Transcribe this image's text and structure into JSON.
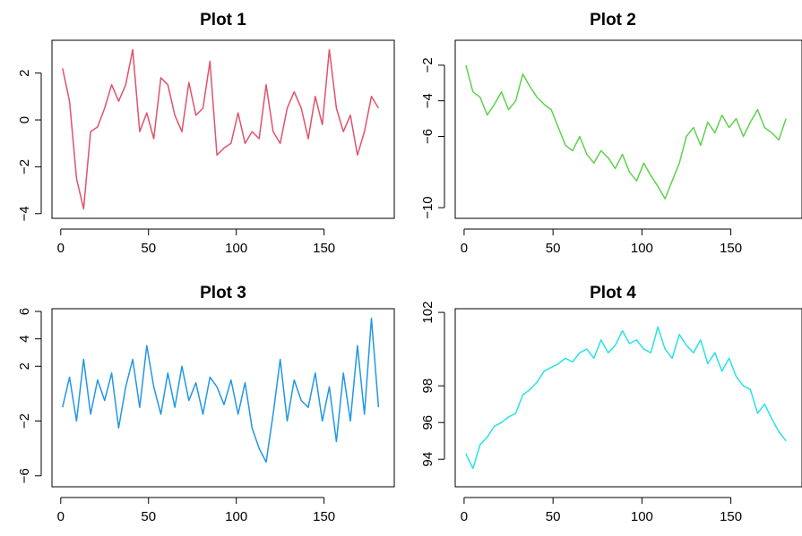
{
  "chart_data": [
    {
      "type": "line",
      "title": "Plot 1",
      "color": "#DF536B",
      "xlim": [
        -5,
        190
      ],
      "ylim": [
        -4.2,
        3.4
      ],
      "xticks": [
        0,
        50,
        100,
        150
      ],
      "xtick_labels": [
        "0",
        "50",
        "100",
        "150"
      ],
      "yticks": [
        -4,
        -2,
        0,
        2
      ],
      "ytick_labels": [
        "−4",
        "−2",
        "0",
        "2"
      ],
      "x": [
        1,
        5,
        9,
        13,
        17,
        21,
        25,
        29,
        33,
        37,
        41,
        45,
        49,
        53,
        57,
        61,
        65,
        69,
        73,
        77,
        81,
        85,
        89,
        93,
        97,
        101,
        105,
        109,
        113,
        117,
        121,
        125,
        129,
        133,
        137,
        141,
        145,
        149,
        153,
        157,
        161,
        165,
        169,
        173,
        177,
        181
      ],
      "y": [
        2.2,
        0.8,
        -2.5,
        -3.8,
        -0.5,
        -0.3,
        0.5,
        1.5,
        0.8,
        1.5,
        3.0,
        -0.5,
        0.3,
        -0.8,
        1.8,
        1.5,
        0.2,
        -0.5,
        1.6,
        0.2,
        0.5,
        2.5,
        -1.5,
        -1.2,
        -1.0,
        0.3,
        -1.0,
        -0.5,
        -0.8,
        1.5,
        -0.5,
        -1.0,
        0.5,
        1.2,
        0.5,
        -0.8,
        1.0,
        -0.2,
        3.0,
        0.5,
        -0.5,
        0.2,
        -1.5,
        -0.5,
        1.0,
        0.5
      ]
    },
    {
      "type": "line",
      "title": "Plot 2",
      "color": "#61D04F",
      "xlim": [
        -5,
        190
      ],
      "ylim": [
        -10.6,
        -0.6
      ],
      "xticks": [
        0,
        50,
        100,
        150
      ],
      "xtick_labels": [
        "0",
        "50",
        "100",
        "150"
      ],
      "yticks": [
        -10,
        -6,
        -4,
        -2
      ],
      "ytick_labels": [
        "−10",
        "−6",
        "−4",
        "−2"
      ],
      "x": [
        1,
        5,
        9,
        13,
        17,
        21,
        25,
        29,
        33,
        37,
        41,
        45,
        49,
        53,
        57,
        61,
        65,
        69,
        73,
        77,
        81,
        85,
        89,
        93,
        97,
        101,
        105,
        109,
        113,
        117,
        121,
        125,
        129,
        133,
        137,
        141,
        145,
        149,
        153,
        157,
        161,
        165,
        169,
        173,
        177,
        181
      ],
      "y": [
        -2,
        -3.5,
        -3.8,
        -4.8,
        -4.2,
        -3.5,
        -4.5,
        -4,
        -2.5,
        -3.2,
        -3.8,
        -4.2,
        -4.5,
        -5.5,
        -6.5,
        -6.8,
        -6.0,
        -7.0,
        -7.5,
        -6.8,
        -7.2,
        -7.8,
        -7.0,
        -8.0,
        -8.5,
        -7.5,
        -8.2,
        -8.8,
        -9.5,
        -8.5,
        -7.5,
        -6.0,
        -5.5,
        -6.5,
        -5.2,
        -5.8,
        -4.8,
        -5.5,
        -5.0,
        -6.0,
        -5.2,
        -4.5,
        -5.5,
        -5.8,
        -6.2,
        -5.0
      ]
    },
    {
      "type": "line",
      "title": "Plot 3",
      "color": "#2297E6",
      "xlim": [
        -5,
        190
      ],
      "ylim": [
        -6.8,
        6.2
      ],
      "xticks": [
        0,
        50,
        100,
        150
      ],
      "xtick_labels": [
        "0",
        "50",
        "100",
        "150"
      ],
      "yticks": [
        -6,
        -2,
        2,
        4,
        6
      ],
      "ytick_labels": [
        "−6",
        "−2",
        "2",
        "4",
        "6"
      ],
      "x": [
        1,
        5,
        9,
        13,
        17,
        21,
        25,
        29,
        33,
        37,
        41,
        45,
        49,
        53,
        57,
        61,
        65,
        69,
        73,
        77,
        81,
        85,
        89,
        93,
        97,
        101,
        105,
        109,
        113,
        117,
        121,
        125,
        129,
        133,
        137,
        141,
        145,
        149,
        153,
        157,
        161,
        165,
        169,
        173,
        177,
        181
      ],
      "y": [
        -1,
        1.2,
        -2,
        2.5,
        -1.5,
        1.0,
        -0.5,
        1.5,
        -2.5,
        0.5,
        2.5,
        -1.0,
        3.5,
        0.5,
        -1.5,
        1.5,
        -1.0,
        2.0,
        -0.5,
        0.8,
        -1.5,
        1.2,
        0.5,
        -0.8,
        1.0,
        -1.5,
        0.8,
        -2.5,
        -4.0,
        -5.0,
        -1.5,
        2.5,
        -2.0,
        1.0,
        -0.5,
        -1.0,
        1.5,
        -2.0,
        0.5,
        -3.5,
        1.5,
        -2.0,
        3.5,
        -1.5,
        5.5,
        -1.0
      ]
    },
    {
      "type": "line",
      "title": "Plot 4",
      "color": "#28E2E5",
      "xlim": [
        -5,
        190
      ],
      "ylim": [
        92.5,
        102.2
      ],
      "xticks": [
        0,
        50,
        100,
        150
      ],
      "xtick_labels": [
        "0",
        "50",
        "100",
        "150"
      ],
      "yticks": [
        94,
        96,
        98,
        102
      ],
      "ytick_labels": [
        "94",
        "96",
        "98",
        "102"
      ],
      "x": [
        1,
        5,
        9,
        13,
        17,
        21,
        25,
        29,
        33,
        37,
        41,
        45,
        49,
        53,
        57,
        61,
        65,
        69,
        73,
        77,
        81,
        85,
        89,
        93,
        97,
        101,
        105,
        109,
        113,
        117,
        121,
        125,
        129,
        133,
        137,
        141,
        145,
        149,
        153,
        157,
        161,
        165,
        169,
        173,
        177,
        181
      ],
      "y": [
        94.3,
        93.5,
        94.8,
        95.2,
        95.8,
        96.0,
        96.3,
        96.5,
        97.5,
        97.8,
        98.2,
        98.8,
        99.0,
        99.2,
        99.5,
        99.3,
        99.8,
        100.0,
        99.5,
        100.5,
        99.8,
        100.2,
        101.0,
        100.3,
        100.5,
        100.0,
        99.8,
        101.2,
        100.0,
        99.5,
        100.8,
        100.2,
        99.8,
        100.5,
        99.2,
        99.8,
        98.8,
        99.5,
        98.5,
        98.0,
        97.8,
        96.5,
        97.0,
        96.2,
        95.5,
        95.0
      ]
    }
  ]
}
